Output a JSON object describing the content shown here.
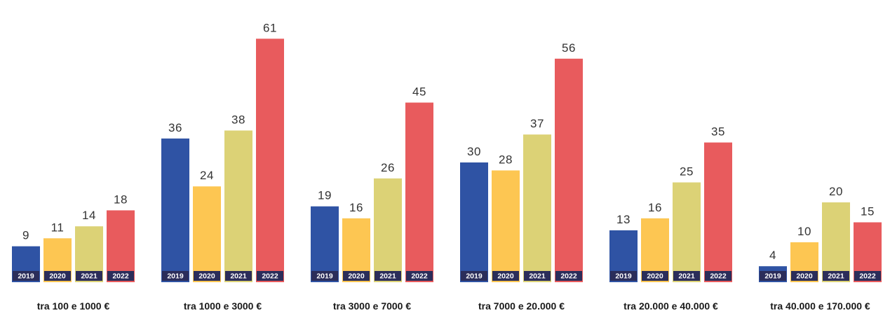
{
  "chart_data": {
    "type": "bar",
    "title": "",
    "xlabel": "",
    "ylabel": "",
    "categories": [
      "tra 100 e 1000 €",
      "tra 1000 e 3000 €",
      "tra 3000 e 7000 €",
      "tra 7000 e 20.000 €",
      "tra 20.000 e 40.000 €",
      "tra 40.000 e 170.000 €"
    ],
    "series": [
      {
        "name": "2019",
        "color": "#2f53a4",
        "values": [
          9,
          36,
          19,
          30,
          13,
          4
        ]
      },
      {
        "name": "2020",
        "color": "#fdc652",
        "values": [
          11,
          24,
          16,
          28,
          16,
          10
        ]
      },
      {
        "name": "2021",
        "color": "#dcd276",
        "values": [
          14,
          38,
          26,
          37,
          25,
          20
        ]
      },
      {
        "name": "2022",
        "color": "#e85b5d",
        "values": [
          18,
          61,
          45,
          56,
          35,
          15
        ]
      }
    ],
    "year_tag_color": "#2b2d5a",
    "grid": false,
    "legend": "none"
  }
}
